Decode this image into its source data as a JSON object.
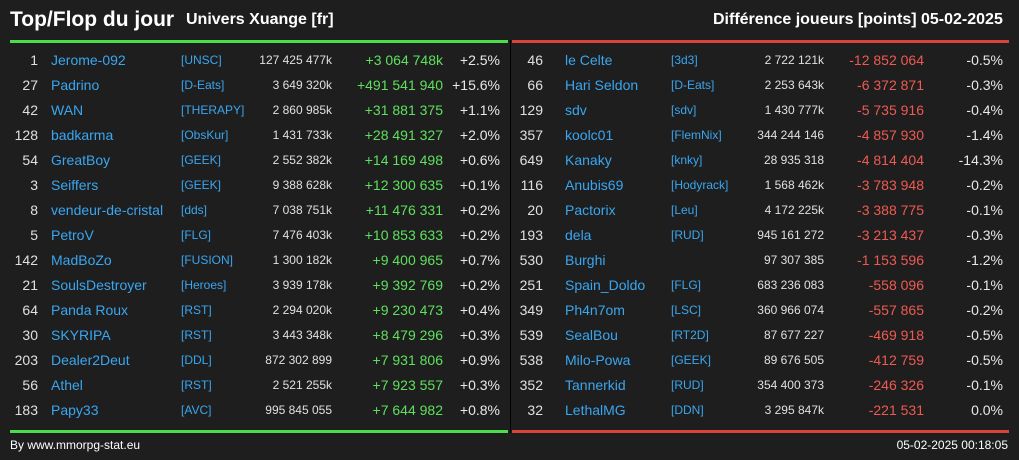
{
  "header": {
    "title": "Top/Flop du jour",
    "universe": "Univers Xuange [fr]",
    "metric_label": "Différence joueurs [points]",
    "date": "05-02-2025"
  },
  "colors": {
    "top_accent": "#4cdd4c",
    "flop_accent": "#d9433b",
    "link": "#3aa6f0",
    "positive": "#5ee05e",
    "negative": "#ee5a52"
  },
  "top": [
    {
      "rank": "1",
      "name": "Jerome-092",
      "alliance": "[UNSC]",
      "points": "127 425 477k",
      "diff": "+3 064 748k",
      "pct": "+2.5%"
    },
    {
      "rank": "27",
      "name": "Padrino",
      "alliance": "[D-Eats]",
      "points": "3 649 320k",
      "diff": "+491 541 940",
      "pct": "+15.6%"
    },
    {
      "rank": "42",
      "name": "WAN",
      "alliance": "[THERAPY]",
      "points": "2 860 985k",
      "diff": "+31 881 375",
      "pct": "+1.1%"
    },
    {
      "rank": "128",
      "name": "badkarma",
      "alliance": "[ObsKur]",
      "points": "1 431 733k",
      "diff": "+28 491 327",
      "pct": "+2.0%"
    },
    {
      "rank": "54",
      "name": "GreatBoy",
      "alliance": "[GEEK]",
      "points": "2 552 382k",
      "diff": "+14 169 498",
      "pct": "+0.6%"
    },
    {
      "rank": "3",
      "name": "Seiffers",
      "alliance": "[GEEK]",
      "points": "9 388 628k",
      "diff": "+12 300 635",
      "pct": "+0.1%"
    },
    {
      "rank": "8",
      "name": "vendeur-de-cristal",
      "alliance": "[dds]",
      "points": "7 038 751k",
      "diff": "+11 476 331",
      "pct": "+0.2%"
    },
    {
      "rank": "5",
      "name": "PetroV",
      "alliance": "[FLG]",
      "points": "7 476 403k",
      "diff": "+10 853 633",
      "pct": "+0.2%"
    },
    {
      "rank": "142",
      "name": "MadBoZo",
      "alliance": "[FUSION]",
      "points": "1 300 182k",
      "diff": "+9 400 965",
      "pct": "+0.7%"
    },
    {
      "rank": "21",
      "name": "SoulsDestroyer",
      "alliance": "[Heroes]",
      "points": "3 939 178k",
      "diff": "+9 392 769",
      "pct": "+0.2%"
    },
    {
      "rank": "64",
      "name": "Panda Roux",
      "alliance": "[RST]",
      "points": "2 294 020k",
      "diff": "+9 230 473",
      "pct": "+0.4%"
    },
    {
      "rank": "30",
      "name": "SKYRIPA",
      "alliance": "[RST]",
      "points": "3 443 348k",
      "diff": "+8 479 296",
      "pct": "+0.3%"
    },
    {
      "rank": "203",
      "name": "Dealer2Deut",
      "alliance": "[DDL]",
      "points": "872 302 899",
      "diff": "+7 931 806",
      "pct": "+0.9%"
    },
    {
      "rank": "56",
      "name": "Athel",
      "alliance": "[RST]",
      "points": "2 521 255k",
      "diff": "+7 923 557",
      "pct": "+0.3%"
    },
    {
      "rank": "183",
      "name": "Papy33",
      "alliance": "[AVC]",
      "points": "995 845 055",
      "diff": "+7 644 982",
      "pct": "+0.8%"
    }
  ],
  "flop": [
    {
      "rank": "46",
      "name": "le Celte",
      "alliance": "[3d3]",
      "points": "2 722 121k",
      "diff": "-12 852 064",
      "pct": "-0.5%"
    },
    {
      "rank": "66",
      "name": "Hari Seldon",
      "alliance": "[D-Eats]",
      "points": "2 253 643k",
      "diff": "-6 372 871",
      "pct": "-0.3%"
    },
    {
      "rank": "129",
      "name": "sdv",
      "alliance": "[sdv]",
      "points": "1 430 777k",
      "diff": "-5 735 916",
      "pct": "-0.4%"
    },
    {
      "rank": "357",
      "name": "koolc01",
      "alliance": "[FlemNix]",
      "points": "344 244 146",
      "diff": "-4 857 930",
      "pct": "-1.4%"
    },
    {
      "rank": "649",
      "name": "Kanaky",
      "alliance": "[knky]",
      "points": "28 935 318",
      "diff": "-4 814 404",
      "pct": "-14.3%"
    },
    {
      "rank": "116",
      "name": "Anubis69",
      "alliance": "[Hodyrack]",
      "points": "1 568 462k",
      "diff": "-3 783 948",
      "pct": "-0.2%"
    },
    {
      "rank": "20",
      "name": "Pactorix",
      "alliance": "[Leu]",
      "points": "4 172 225k",
      "diff": "-3 388 775",
      "pct": "-0.1%"
    },
    {
      "rank": "193",
      "name": "dela",
      "alliance": "[RUD]",
      "points": "945 161 272",
      "diff": "-3 213 437",
      "pct": "-0.3%"
    },
    {
      "rank": "530",
      "name": "Burghi",
      "alliance": "",
      "points": "97 307 385",
      "diff": "-1 153 596",
      "pct": "-1.2%"
    },
    {
      "rank": "251",
      "name": "Spain_Doldo",
      "alliance": "[FLG]",
      "points": "683 236 083",
      "diff": "-558 096",
      "pct": "-0.1%"
    },
    {
      "rank": "349",
      "name": "Ph4n7om",
      "alliance": "[LSC]",
      "points": "360 966 074",
      "diff": "-557 865",
      "pct": "-0.2%"
    },
    {
      "rank": "539",
      "name": "SealBou",
      "alliance": "[RT2D]",
      "points": "87 677 227",
      "diff": "-469 918",
      "pct": "-0.5%"
    },
    {
      "rank": "538",
      "name": "Milo-Powa",
      "alliance": "[GEEK]",
      "points": "89 676 505",
      "diff": "-412 759",
      "pct": "-0.5%"
    },
    {
      "rank": "352",
      "name": "Tannerkid",
      "alliance": "[RUD]",
      "points": "354 400 373",
      "diff": "-246 326",
      "pct": "-0.1%"
    },
    {
      "rank": "32",
      "name": "LethalMG",
      "alliance": "[DDN]",
      "points": "3 295 847k",
      "diff": "-221 531",
      "pct": "0.0%"
    }
  ],
  "footer": {
    "source": "By www.mmorpg-stat.eu",
    "timestamp": "05-02-2025 00:18:05"
  }
}
